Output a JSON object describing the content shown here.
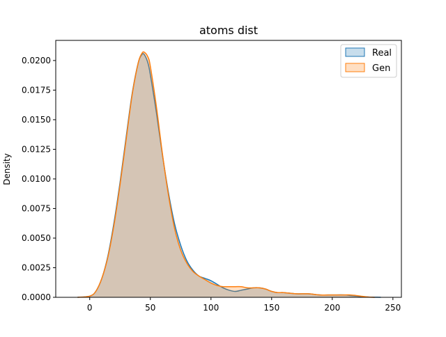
{
  "chart_data": {
    "type": "area",
    "title": "atoms dist",
    "xlabel": "",
    "ylabel": "Density",
    "xlim": [
      -28,
      257
    ],
    "ylim": [
      0,
      0.0217
    ],
    "xticks": [
      0,
      50,
      100,
      150,
      200,
      250
    ],
    "xtick_labels": [
      "0",
      "50",
      "100",
      "150",
      "200",
      "250"
    ],
    "yticks": [
      0,
      0.0025,
      0.005,
      0.0075,
      0.01,
      0.0125,
      0.015,
      0.0175,
      0.02
    ],
    "ytick_labels": [
      "0.0000",
      "0.0025",
      "0.0050",
      "0.0075",
      "0.0100",
      "0.0125",
      "0.0150",
      "0.0175",
      "0.0200"
    ],
    "grid": false,
    "legend_position": "top-right",
    "series": [
      {
        "name": "Real",
        "color": "#1f77b4",
        "fill": "rgba(31,119,180,0.25)",
        "x": [
          -10,
          0,
          5,
          10,
          15,
          20,
          25,
          30,
          35,
          40,
          43,
          45,
          48,
          50,
          55,
          60,
          65,
          70,
          75,
          80,
          85,
          90,
          95,
          100,
          105,
          110,
          115,
          120,
          125,
          130,
          135,
          140,
          145,
          150,
          155,
          160,
          170,
          180,
          190,
          200,
          210,
          215,
          220,
          225,
          230,
          235,
          240
        ],
        "y": [
          0,
          0.0001,
          0.0005,
          0.0016,
          0.0035,
          0.0063,
          0.0097,
          0.0135,
          0.0172,
          0.0198,
          0.0205,
          0.0205,
          0.0198,
          0.0188,
          0.0156,
          0.012,
          0.0088,
          0.0062,
          0.0044,
          0.0031,
          0.0023,
          0.0018,
          0.0016,
          0.0014,
          0.0011,
          0.0008,
          0.0006,
          0.0005,
          0.0006,
          0.0007,
          0.0008,
          0.0008,
          0.0007,
          0.0005,
          0.0004,
          0.0004,
          0.0003,
          0.0003,
          0.0002,
          0.0002,
          0.0002,
          0.00015,
          0.0001,
          5e-05,
          2e-05,
          1e-05,
          0
        ]
      },
      {
        "name": "Gen",
        "color": "#ff7f0e",
        "fill": "rgba(255,127,14,0.25)",
        "x": [
          -10,
          0,
          5,
          10,
          15,
          20,
          25,
          30,
          35,
          40,
          43,
          45,
          48,
          50,
          55,
          60,
          65,
          70,
          75,
          80,
          85,
          90,
          95,
          100,
          105,
          110,
          115,
          120,
          125,
          130,
          135,
          140,
          145,
          150,
          155,
          160,
          170,
          180,
          190,
          200,
          210,
          215,
          220,
          225,
          230,
          235
        ],
        "y": [
          0,
          0.0001,
          0.0005,
          0.0016,
          0.0034,
          0.0061,
          0.0095,
          0.0133,
          0.0171,
          0.0198,
          0.0206,
          0.0207,
          0.0203,
          0.0195,
          0.0161,
          0.0121,
          0.0086,
          0.0058,
          0.004,
          0.0029,
          0.0022,
          0.0018,
          0.0015,
          0.0012,
          0.001,
          0.0009,
          0.0009,
          0.0009,
          0.0009,
          0.0008,
          0.0008,
          0.0008,
          0.0007,
          0.0005,
          0.0004,
          0.0004,
          0.0003,
          0.0003,
          0.0002,
          0.0002,
          0.0002,
          0.0002,
          0.00015,
          8e-05,
          2e-05,
          0
        ]
      }
    ]
  }
}
